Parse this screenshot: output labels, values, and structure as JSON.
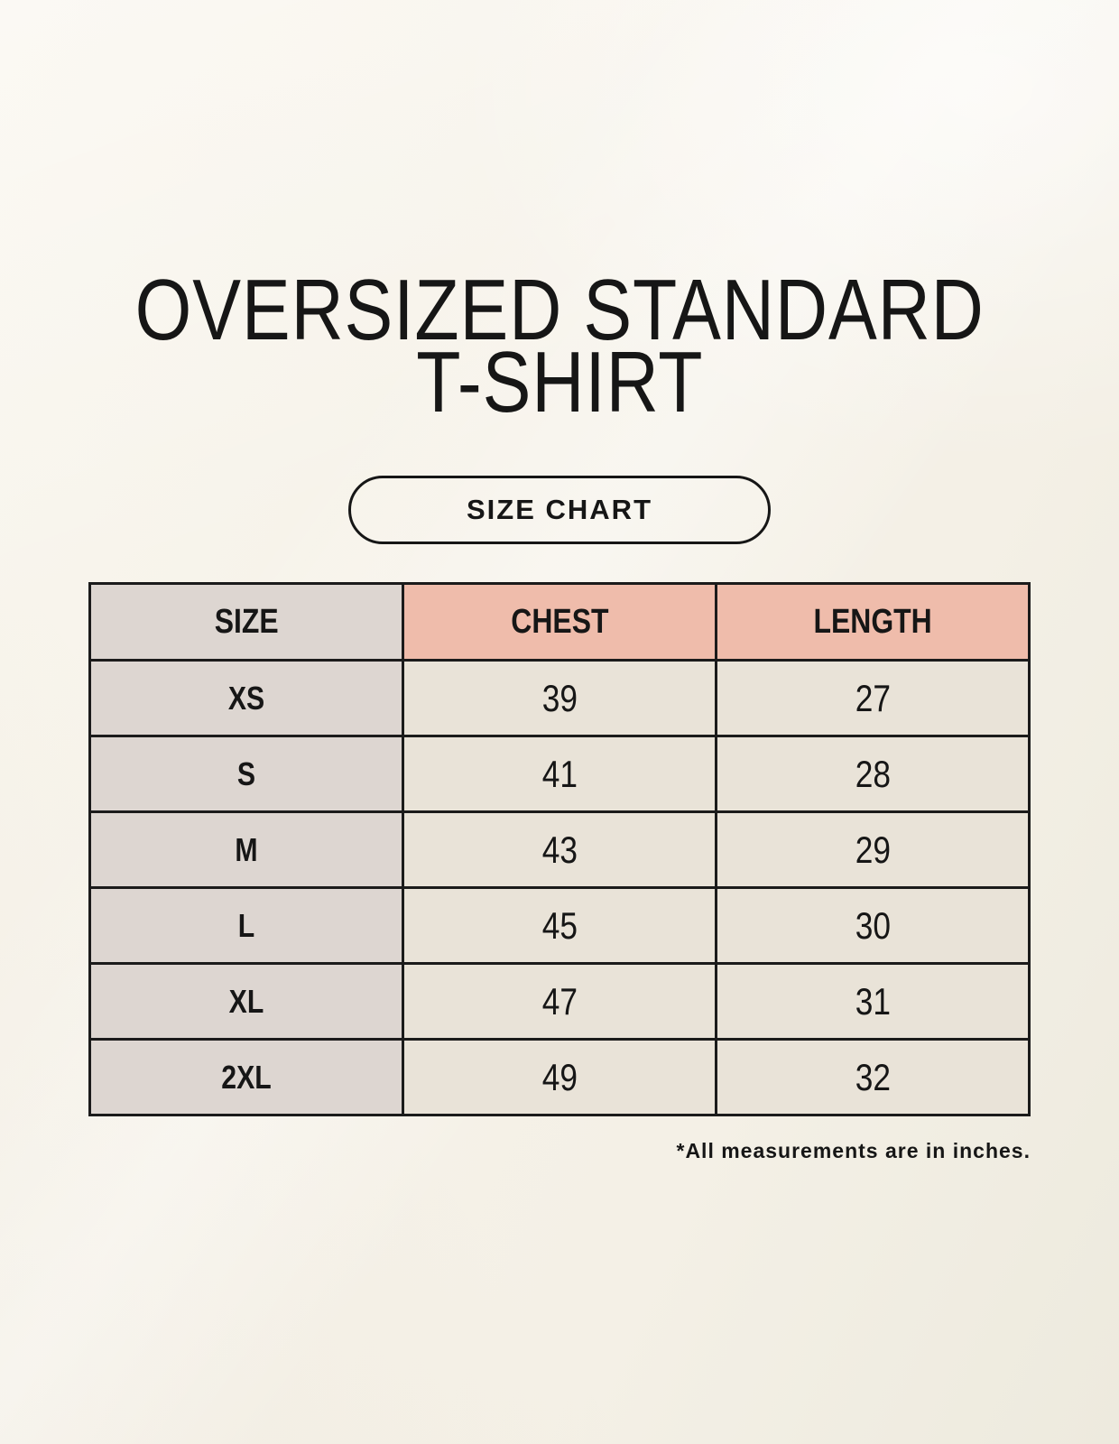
{
  "colors": {
    "background": "#f5f1e8",
    "ink": "#161616",
    "table_border": "#1b1b1b",
    "header_size_bg": "#ddd6d1",
    "header_measure_bg": "#efbcab",
    "col_size_bg": "#ddd6d1",
    "cell_bg": "#e9e3d8"
  },
  "header": {
    "title_line1": "OVERSIZED STANDARD",
    "title_line2": "T-SHIRT",
    "badge_label": "SIZE CHART"
  },
  "chart_data": {
    "type": "table",
    "title": "OVERSIZED STANDARD T-SHIRT",
    "subtitle": "SIZE CHART",
    "columns": [
      "SIZE",
      "CHEST",
      "LENGTH"
    ],
    "rows": [
      [
        "XS",
        "39",
        "27"
      ],
      [
        "S",
        "41",
        "28"
      ],
      [
        "M",
        "43",
        "29"
      ],
      [
        "L",
        "45",
        "30"
      ],
      [
        "XL",
        "47",
        "31"
      ],
      [
        "2XL",
        "49",
        "32"
      ]
    ],
    "units_note": "*All measurements are in inches.",
    "layout": {
      "grid": "on",
      "header_accent": "#efbcab",
      "size_column_accent": "#ddd6d1"
    }
  }
}
